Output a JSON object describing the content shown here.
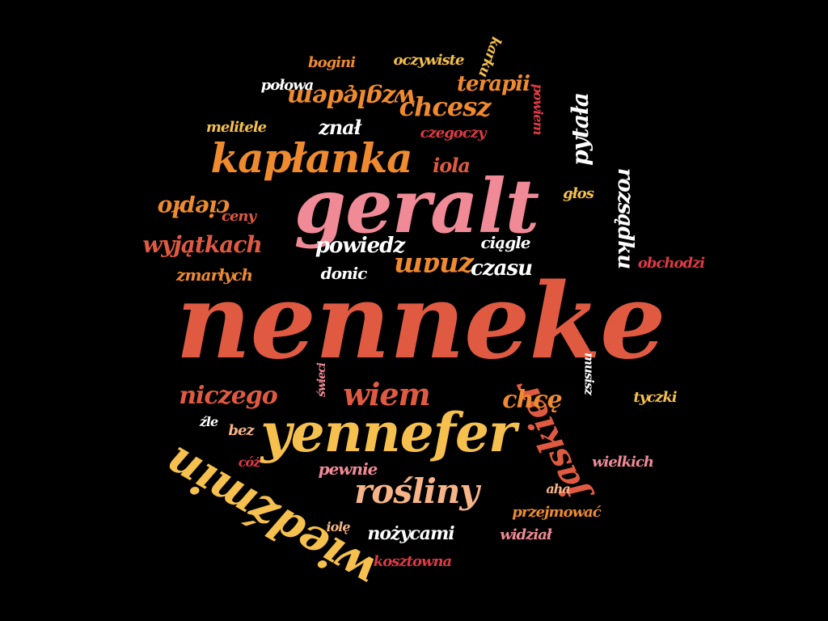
{
  "words": [
    {
      "id": "nenneke",
      "text": "nenneke",
      "color": "#e05a42"
    },
    {
      "id": "geralt",
      "text": "geralt",
      "color": "#f08a96"
    },
    {
      "id": "yennefer",
      "text": "yennefer",
      "color": "#f5c04e"
    },
    {
      "id": "kaplanka",
      "text": "kapłanka",
      "color": "#ef8a2f"
    },
    {
      "id": "wiedzmin",
      "text": "wiedźmin",
      "color": "#f5c04e"
    },
    {
      "id": "rosliny",
      "text": "rośliny",
      "color": "#f6b487"
    },
    {
      "id": "jaskier",
      "text": "jaskier",
      "color": "#e05a42"
    },
    {
      "id": "wiem",
      "text": "wiem",
      "color": "#e05a42"
    },
    {
      "id": "niczego",
      "text": "niczego",
      "color": "#e05a42"
    },
    {
      "id": "chce",
      "text": "chcę",
      "color": "#ef8a2f"
    },
    {
      "id": "znam",
      "text": "znam",
      "color": "#ef8a2f"
    },
    {
      "id": "powiedz",
      "text": "powiedz",
      "color": "#ffffff"
    },
    {
      "id": "chcesz",
      "text": "chcesz",
      "color": "#ef8a2f"
    },
    {
      "id": "terapii",
      "text": "terapii",
      "color": "#ef8a2f"
    },
    {
      "id": "wzgledem",
      "text": "względem",
      "color": "#ef8a2f"
    },
    {
      "id": "wyjatkach",
      "text": "wyjątkach",
      "color": "#e05a42"
    },
    {
      "id": "pytala",
      "text": "pytała",
      "color": "#ffffff"
    },
    {
      "id": "rozsadku",
      "text": "rozsądku",
      "color": "#ffffff"
    },
    {
      "id": "czasu",
      "text": "czasu",
      "color": "#ffffff"
    },
    {
      "id": "ciagle",
      "text": "ciągle",
      "color": "#ffffff"
    },
    {
      "id": "donic",
      "text": "donic",
      "color": "#ffffff"
    },
    {
      "id": "znal",
      "text": "znał",
      "color": "#ffffff"
    },
    {
      "id": "iola",
      "text": "iola",
      "color": "#e05a42"
    },
    {
      "id": "czegoczy",
      "text": "czegoczy",
      "color": "#dd3a45"
    },
    {
      "id": "melitele",
      "text": "melitele",
      "color": "#f5c04e"
    },
    {
      "id": "cieplo",
      "text": "ciepło",
      "color": "#ef8a2f"
    },
    {
      "id": "ceny",
      "text": "ceny",
      "color": "#e05a42"
    },
    {
      "id": "zmarlych",
      "text": "zmarłych",
      "color": "#ef8a2f"
    },
    {
      "id": "bogini",
      "text": "bogini",
      "color": "#ef8a2f"
    },
    {
      "id": "polowa",
      "text": "połowa",
      "color": "#ffffff"
    },
    {
      "id": "oczywiste",
      "text": "oczywiste",
      "color": "#f5c04e"
    },
    {
      "id": "karku",
      "text": "karku",
      "color": "#f5c04e"
    },
    {
      "id": "powiem",
      "text": "powiem",
      "color": "#dd3a45"
    },
    {
      "id": "glos",
      "text": "głos",
      "color": "#f5c04e"
    },
    {
      "id": "obchodzi",
      "text": "obchodzi",
      "color": "#dd3a45"
    },
    {
      "id": "musisz",
      "text": "musisz",
      "color": "#ffffff"
    },
    {
      "id": "tyczki",
      "text": "tyczki",
      "color": "#f5c04e"
    },
    {
      "id": "wielkich",
      "text": "wielkich",
      "color": "#f08a96"
    },
    {
      "id": "aha",
      "text": "aha",
      "color": "#f6b487"
    },
    {
      "id": "przejmowac",
      "text": "przejmować",
      "color": "#ef8a2f"
    },
    {
      "id": "widzial",
      "text": "widział",
      "color": "#f08a96"
    },
    {
      "id": "kosztowna",
      "text": "kosztowna",
      "color": "#dd3a45"
    },
    {
      "id": "nozycami",
      "text": "nożycami",
      "color": "#ffffff"
    },
    {
      "id": "iole",
      "text": "iolę",
      "color": "#f6b487"
    },
    {
      "id": "pewnie",
      "text": "pewnie",
      "color": "#f08a96"
    },
    {
      "id": "bez",
      "text": "bez",
      "color": "#f6b487"
    },
    {
      "id": "zle",
      "text": "źle",
      "color": "#ffffff"
    },
    {
      "id": "coz",
      "text": "cóż",
      "color": "#dd3a45"
    },
    {
      "id": "swieci",
      "text": "świeci",
      "color": "#f08a96"
    }
  ]
}
